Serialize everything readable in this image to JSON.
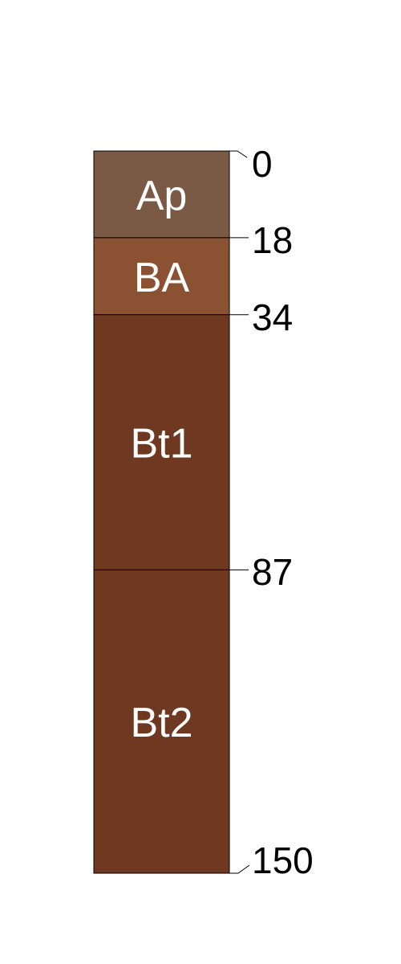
{
  "profile": {
    "horizons": [
      {
        "name": "Ap",
        "top": 0,
        "bottom": 18,
        "color": "#7a5a44"
      },
      {
        "name": "BA",
        "top": 18,
        "bottom": 34,
        "color": "#8a5232"
      },
      {
        "name": "Bt1",
        "top": 34,
        "bottom": 87,
        "color": "#6f3820"
      },
      {
        "name": "Bt2",
        "top": 87,
        "bottom": 150,
        "color": "#6f3820"
      }
    ],
    "depths": [
      "0",
      "18",
      "34",
      "87",
      "150"
    ]
  }
}
